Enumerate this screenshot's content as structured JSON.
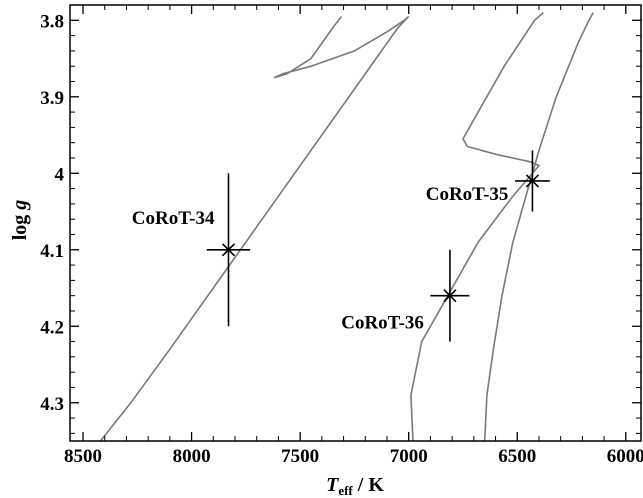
{
  "chart_data": {
    "type": "scatter",
    "xlabel": {
      "main": "T",
      "sub": "eff",
      "unit": " / K"
    },
    "ylabel": {
      "main": "log ",
      "italic": "g"
    },
    "xlim": [
      8560,
      5930
    ],
    "ylim": [
      3.78,
      4.35
    ],
    "xticks": [
      8500,
      8000,
      7500,
      7000,
      6500,
      6000
    ],
    "yticks": [
      3.8,
      3.9,
      4.0,
      4.1,
      4.2,
      4.3
    ],
    "ytick_labels": [
      "3.8",
      "3.9",
      "4",
      "4.1",
      "4.2",
      "4.3"
    ],
    "grid": false,
    "points": [
      {
        "name": "CoRoT-34",
        "teff": 7830,
        "teff_err": 100,
        "logg": 4.1,
        "logg_err": 0.1
      },
      {
        "name": "CoRoT-35",
        "teff": 6430,
        "teff_err": 80,
        "logg": 4.01,
        "logg_err": 0.04
      },
      {
        "name": "CoRoT-36",
        "teff": 6810,
        "teff_err": 90,
        "logg": 4.16,
        "logg_err": 0.06
      }
    ],
    "tracks": [
      {
        "points": [
          [
            8420,
            4.35
          ],
          [
            8280,
            4.3
          ],
          [
            8100,
            4.23
          ],
          [
            7900,
            4.15
          ],
          [
            7700,
            4.07
          ],
          [
            7500,
            3.99
          ],
          [
            7300,
            3.91
          ],
          [
            7150,
            3.85
          ],
          [
            7050,
            3.81
          ],
          [
            7000,
            3.795
          ],
          [
            7020,
            3.8
          ],
          [
            7100,
            3.815
          ],
          [
            7250,
            3.84
          ],
          [
            7450,
            3.86
          ],
          [
            7580,
            3.87
          ],
          [
            7620,
            3.875
          ],
          [
            7560,
            3.87
          ],
          [
            7450,
            3.85
          ],
          [
            7350,
            3.81
          ],
          [
            7310,
            3.795
          ]
        ]
      },
      {
        "points": [
          [
            6980,
            4.35
          ],
          [
            6990,
            4.29
          ],
          [
            6940,
            4.22
          ],
          [
            6820,
            4.16
          ],
          [
            6680,
            4.09
          ],
          [
            6520,
            4.03
          ],
          [
            6400,
            3.99
          ],
          [
            6440,
            3.985
          ],
          [
            6600,
            3.975
          ],
          [
            6730,
            3.965
          ],
          [
            6750,
            3.955
          ],
          [
            6700,
            3.93
          ],
          [
            6560,
            3.86
          ],
          [
            6420,
            3.8
          ],
          [
            6380,
            3.79
          ]
        ]
      },
      {
        "points": [
          [
            6650,
            4.35
          ],
          [
            6640,
            4.29
          ],
          [
            6610,
            4.23
          ],
          [
            6570,
            4.16
          ],
          [
            6520,
            4.09
          ],
          [
            6460,
            4.03
          ],
          [
            6400,
            3.97
          ],
          [
            6320,
            3.9
          ],
          [
            6220,
            3.83
          ],
          [
            6170,
            3.8
          ],
          [
            6150,
            3.79
          ]
        ]
      }
    ]
  }
}
